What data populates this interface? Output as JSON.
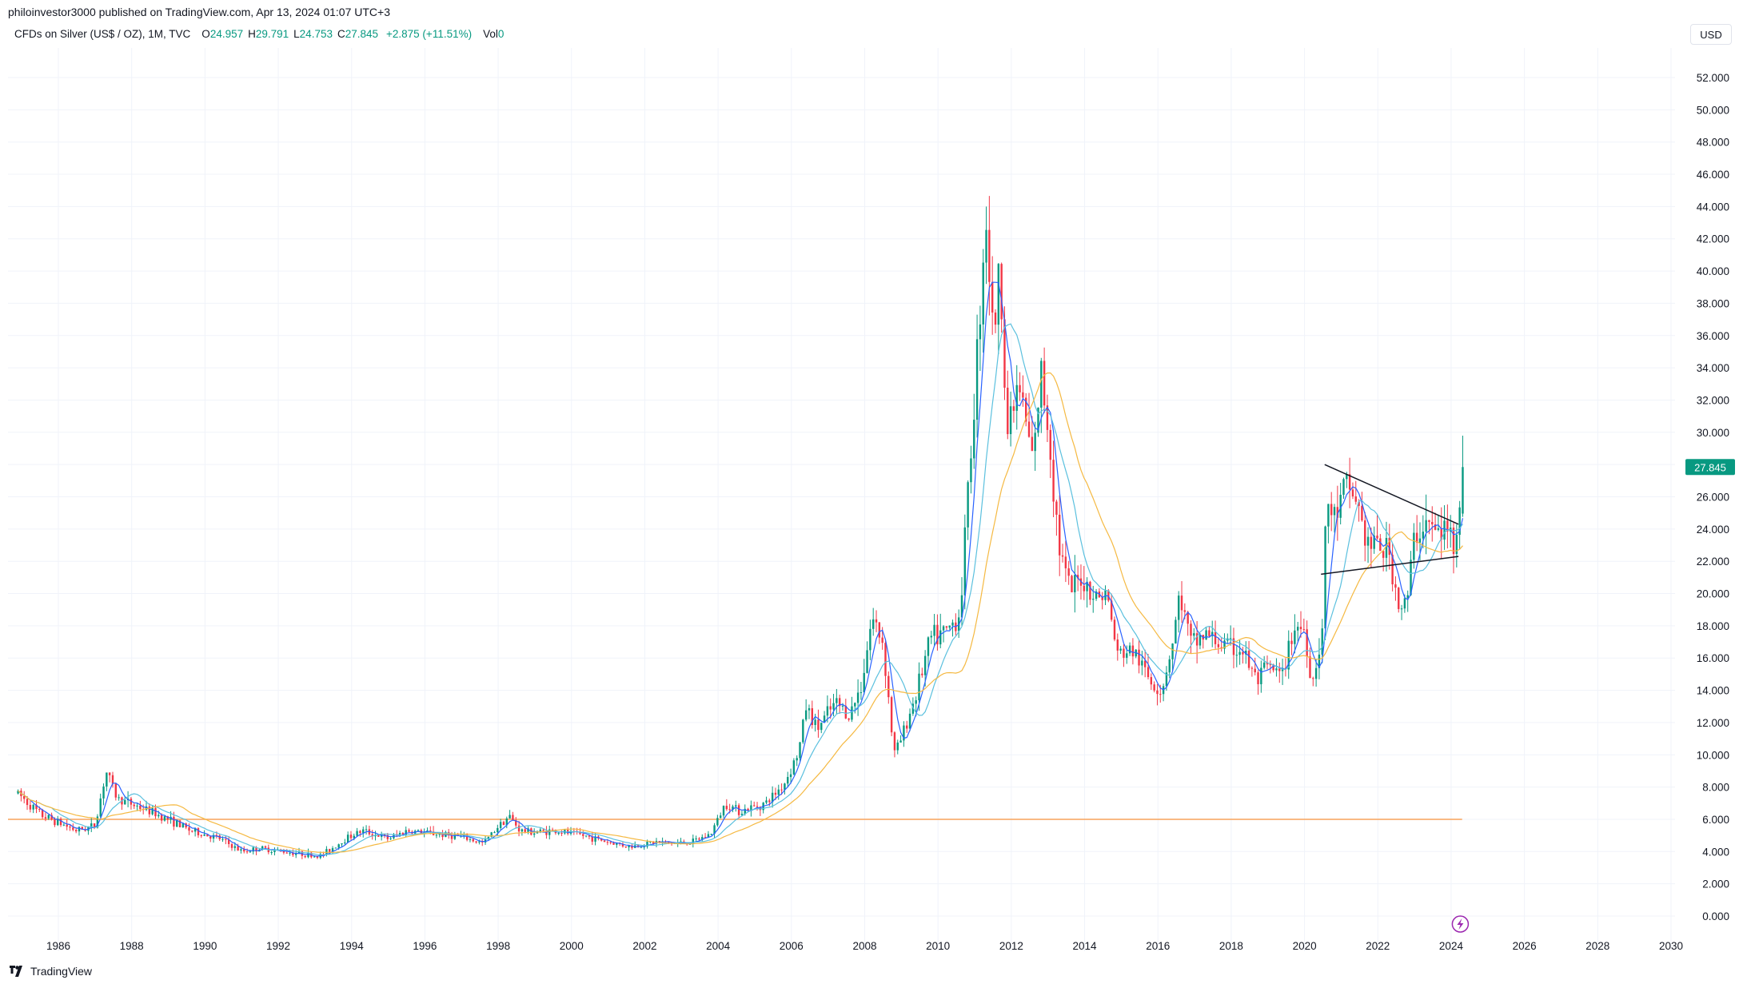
{
  "header": {
    "publisher": "philoinvestor3000 published on TradingView.com, Apr 13, 2024 01:07 UTC+3"
  },
  "legend": {
    "symbol": "CFDs on Silver (US$ / OZ), 1M, TVC",
    "open_label": "O",
    "open_value": "24.957",
    "high_label": "H",
    "high_value": "29.791",
    "low_label": "L",
    "low_value": "24.753",
    "close_label": "C",
    "close_value": "27.845",
    "change": "+2.875 (+11.51%)",
    "vol_label": "Vol",
    "vol_value": "0"
  },
  "toolbar": {
    "currency": "USD"
  },
  "footer": {
    "brand": "TradingView"
  },
  "colors": {
    "up": "#089981",
    "down": "#f23645",
    "ma_fast": "#2962ff",
    "ma_mid": "#5bc0de",
    "ma_slow": "#f5b942",
    "support_line": "#f7a35c",
    "trendline": "#131722",
    "grid": "#f0f3fa"
  },
  "chart_data": {
    "type": "candlestick",
    "interval": "1M",
    "ylim": [
      0,
      52
    ],
    "y_ticks": [
      "0.000",
      "2.000",
      "4.000",
      "6.000",
      "8.000",
      "10.000",
      "12.000",
      "14.000",
      "16.000",
      "18.000",
      "20.000",
      "22.000",
      "24.000",
      "26.000",
      "28.000",
      "30.000",
      "32.000",
      "34.000",
      "36.000",
      "38.000",
      "40.000",
      "42.000",
      "44.000",
      "46.000",
      "48.000",
      "50.000",
      "52.000"
    ],
    "x_ticks": [
      "1986",
      "1988",
      "1990",
      "1992",
      "1994",
      "1996",
      "1998",
      "2000",
      "2002",
      "2004",
      "2006",
      "2008",
      "2010",
      "2012",
      "2014",
      "2016",
      "2018",
      "2020",
      "2022",
      "2024",
      "2026",
      "2028",
      "2030"
    ],
    "xlim": [
      1984.9,
      2030.5
    ],
    "last_price": "27.845",
    "price_path": [
      [
        1984.9,
        7.6
      ],
      [
        1985.5,
        6.3
      ],
      [
        1986.5,
        5.3
      ],
      [
        1987.0,
        5.6
      ],
      [
        1987.3,
        9.0
      ],
      [
        1987.6,
        7.3
      ],
      [
        1988.5,
        6.5
      ],
      [
        1989.0,
        6.0
      ],
      [
        1989.6,
        5.3
      ],
      [
        1990.4,
        4.8
      ],
      [
        1991.0,
        4.0
      ],
      [
        1991.5,
        4.2
      ],
      [
        1992.5,
        3.9
      ],
      [
        1993.1,
        3.7
      ],
      [
        1993.4,
        4.1
      ],
      [
        1993.9,
        4.9
      ],
      [
        1994.3,
        5.3
      ],
      [
        1995.0,
        4.8
      ],
      [
        1995.5,
        5.3
      ],
      [
        1996.3,
        5.1
      ],
      [
        1997.0,
        4.9
      ],
      [
        1997.6,
        4.5
      ],
      [
        1998.0,
        5.6
      ],
      [
        1998.3,
        6.2
      ],
      [
        1998.6,
        5.3
      ],
      [
        1999.0,
        5.2
      ],
      [
        1999.5,
        5.3
      ],
      [
        2000.3,
        5.0
      ],
      [
        2001.0,
        4.6
      ],
      [
        2001.6,
        4.3
      ],
      [
        2002.3,
        4.6
      ],
      [
        2002.8,
        4.5
      ],
      [
        2003.3,
        4.6
      ],
      [
        2003.8,
        5.1
      ],
      [
        2004.2,
        7.0
      ],
      [
        2004.6,
        6.5
      ],
      [
        2005.3,
        7.0
      ],
      [
        2005.8,
        8.2
      ],
      [
        2006.2,
        10.2
      ],
      [
        2006.4,
        13.0
      ],
      [
        2006.7,
        11.6
      ],
      [
        2007.2,
        13.2
      ],
      [
        2007.6,
        12.5
      ],
      [
        2007.9,
        14.3
      ],
      [
        2008.2,
        18.5
      ],
      [
        2008.5,
        17.0
      ],
      [
        2008.8,
        10.0
      ],
      [
        2009.0,
        11.0
      ],
      [
        2009.4,
        13.8
      ],
      [
        2009.8,
        17.2
      ],
      [
        2010.2,
        17.5
      ],
      [
        2010.6,
        18.8
      ],
      [
        2010.9,
        29.0
      ],
      [
        2011.1,
        36.0
      ],
      [
        2011.3,
        44.0
      ],
      [
        2011.5,
        36.0
      ],
      [
        2011.7,
        40.0
      ],
      [
        2011.9,
        30.0
      ],
      [
        2012.2,
        33.0
      ],
      [
        2012.6,
        28.0
      ],
      [
        2012.8,
        33.8
      ],
      [
        2013.0,
        30.5
      ],
      [
        2013.3,
        23.0
      ],
      [
        2013.6,
        20.0
      ],
      [
        2013.9,
        21.0
      ],
      [
        2014.3,
        19.8
      ],
      [
        2014.6,
        20.0
      ],
      [
        2014.9,
        16.2
      ],
      [
        2015.3,
        16.5
      ],
      [
        2015.8,
        14.6
      ],
      [
        2016.1,
        14.0
      ],
      [
        2016.4,
        17.0
      ],
      [
        2016.6,
        20.0
      ],
      [
        2016.9,
        16.8
      ],
      [
        2017.3,
        17.5
      ],
      [
        2017.8,
        16.7
      ],
      [
        2018.3,
        16.5
      ],
      [
        2018.7,
        14.5
      ],
      [
        2019.0,
        15.4
      ],
      [
        2019.4,
        14.8
      ],
      [
        2019.7,
        18.0
      ],
      [
        2020.0,
        17.8
      ],
      [
        2020.2,
        14.3
      ],
      [
        2020.5,
        18.0
      ],
      [
        2020.6,
        26.0
      ],
      [
        2020.8,
        24.5
      ],
      [
        2021.1,
        26.5
      ],
      [
        2021.4,
        26.0
      ],
      [
        2021.7,
        23.0
      ],
      [
        2022.0,
        23.0
      ],
      [
        2022.3,
        22.5
      ],
      [
        2022.6,
        19.0
      ],
      [
        2022.8,
        19.5
      ],
      [
        2023.0,
        23.5
      ],
      [
        2023.3,
        24.5
      ],
      [
        2023.6,
        23.7
      ],
      [
        2023.9,
        24.0
      ],
      [
        2024.1,
        23.2
      ],
      [
        2024.2,
        24.9
      ],
      [
        2024.28,
        27.8
      ]
    ],
    "overlays": {
      "support_level": 6.0,
      "trendline_upper": [
        [
          2020.55,
          28.0
        ],
        [
          2024.2,
          24.3
        ]
      ],
      "trendline_lower": [
        [
          2020.45,
          21.2
        ],
        [
          2024.2,
          22.3
        ]
      ]
    }
  }
}
